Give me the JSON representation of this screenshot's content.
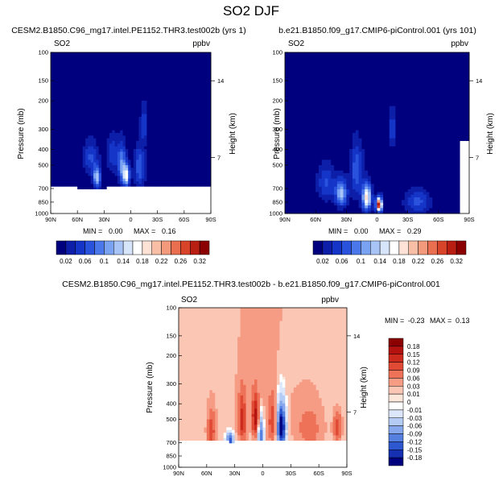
{
  "figure": {
    "title": "SO2 DJF"
  },
  "chart_data": [
    {
      "type": "heatmap",
      "id": "left",
      "title": "CESM2.B1850.C96_mg17.intel.PE1152.THR3.test002b (yrs 1)",
      "left_label": "SO2",
      "right_label": "ppbv",
      "xlabel": "",
      "ylabel": "Pressure (mb)",
      "y2label": "Height (km)",
      "x_ticks": [
        "90N",
        "60N",
        "30N",
        "0",
        "30S",
        "60S",
        "90S"
      ],
      "y_ticks": [
        "100",
        "150",
        "200",
        "300",
        "400",
        "500",
        "700",
        "850",
        "1000"
      ],
      "y2_ticks": [
        "14",
        "7"
      ],
      "stats": {
        "min_label": "MIN =",
        "min": "0.00",
        "max_label": "MAX =",
        "max": "0.16"
      },
      "colorbar_labels": [
        "0.02",
        "0.06",
        "0.1",
        "0.14",
        "0.18",
        "0.22",
        "0.26",
        "0.32"
      ],
      "colors": {
        "bar": [
          "#00007f",
          "#0d1fa8",
          "#1535c8",
          "#2a53dd",
          "#4a78ea",
          "#7aa2f2",
          "#a8c4f7",
          "#d7e5fb",
          "#ffffff",
          "#fde2d5",
          "#f8bfa6",
          "#f39a7c",
          "#ea6f50",
          "#d8442a",
          "#b81e12",
          "#8b0000"
        ]
      },
      "hotspots": [
        {
          "lat": 45,
          "p": 450,
          "amp": 0.06,
          "slat": 6,
          "sp": 80
        },
        {
          "lat": 38,
          "p": 600,
          "amp": 0.13,
          "slat": 3,
          "sp": 60
        },
        {
          "lat": 20,
          "p": 420,
          "amp": 0.05,
          "slat": 5,
          "sp": 80
        },
        {
          "lat": 10,
          "p": 500,
          "amp": 0.09,
          "slat": 3,
          "sp": 100
        },
        {
          "lat": 5,
          "p": 580,
          "amp": 0.16,
          "slat": 2.5,
          "sp": 60
        },
        {
          "lat": -15,
          "p": 280,
          "amp": 0.05,
          "slat": 3,
          "sp": 60
        },
        {
          "lat": -10,
          "p": 520,
          "amp": 0.07,
          "slat": 4,
          "sp": 100
        }
      ]
    },
    {
      "type": "heatmap",
      "id": "right",
      "title": "b.e21.B1850.f09_g17.CMIP6-piControl.001 (yrs 101)",
      "left_label": "SO2",
      "right_label": "ppbv",
      "xlabel": "",
      "ylabel": "Pressure (mb)",
      "y2label": "Height (km)",
      "x_ticks": [
        "90N",
        "60N",
        "30N",
        "0",
        "30S",
        "60S",
        "90S"
      ],
      "y_ticks": [
        "100",
        "150",
        "200",
        "300",
        "400",
        "500",
        "700",
        "850",
        "1000"
      ],
      "y2_ticks": [
        "14",
        "7"
      ],
      "stats": {
        "min_label": "MIN =",
        "min": "0.00",
        "max_label": "MAX =",
        "max": "0.29"
      },
      "colorbar_labels": [
        "0.02",
        "0.06",
        "0.1",
        "0.14",
        "0.18",
        "0.22",
        "0.26",
        "0.32"
      ],
      "hotspots": [
        {
          "lat": 50,
          "p": 650,
          "amp": 0.06,
          "slat": 6,
          "sp": 120
        },
        {
          "lat": 35,
          "p": 750,
          "amp": 0.12,
          "slat": 4,
          "sp": 100
        },
        {
          "lat": 20,
          "p": 550,
          "amp": 0.07,
          "slat": 4,
          "sp": 150
        },
        {
          "lat": 10,
          "p": 800,
          "amp": 0.18,
          "slat": 3,
          "sp": 100
        },
        {
          "lat": -2,
          "p": 880,
          "amp": 0.29,
          "slat": 2,
          "sp": 60
        },
        {
          "lat": -15,
          "p": 300,
          "amp": 0.05,
          "slat": 3,
          "sp": 60
        },
        {
          "lat": -40,
          "p": 850,
          "amp": 0.06,
          "slat": 8,
          "sp": 100
        }
      ]
    },
    {
      "type": "heatmap",
      "id": "diff",
      "title": "CESM2.B1850.C96_mg17.intel.PE1152.THR3.test002b - b.e21.B1850.f09_g17.CMIP6-piControl.001",
      "left_label": "SO2",
      "right_label": "ppbv",
      "xlabel": "",
      "ylabel": "Pressure (mb)",
      "y2label": "Height (km)",
      "x_ticks": [
        "90N",
        "60N",
        "30N",
        "0",
        "30S",
        "60S",
        "90S"
      ],
      "y_ticks": [
        "100",
        "150",
        "200",
        "300",
        "400",
        "500",
        "700",
        "850",
        "1000"
      ],
      "y2_ticks": [
        "14",
        "7"
      ],
      "stats": {
        "min_label": "MIN =",
        "min": "-0.23",
        "max_label": "MAX =",
        "max": "0.13"
      },
      "colorbar_labels": [
        "0.18",
        "0.15",
        "0.12",
        "0.09",
        "0.06",
        "0.03",
        "0.01",
        "0",
        "-0.01",
        "-0.03",
        "-0.06",
        "-0.09",
        "-0.12",
        "-0.15",
        "-0.18"
      ],
      "colors": {
        "bar": [
          "#8b0000",
          "#b3120f",
          "#cc2a1d",
          "#e04a34",
          "#ee7258",
          "#f69c84",
          "#fbc7b4",
          "#fde6da",
          "#ffffff",
          "#dce7fb",
          "#b4cbf4",
          "#86a7ec",
          "#5680e0",
          "#2e58d0",
          "#1530b3",
          "#00007f"
        ]
      },
      "hotspots": [
        {
          "lat": 55,
          "p": 600,
          "amp": 0.08,
          "slat": 3,
          "sp": 120
        },
        {
          "lat": 35,
          "p": 680,
          "amp": -0.15,
          "slat": 2.5,
          "sp": 50
        },
        {
          "lat": 22,
          "p": 500,
          "amp": 0.1,
          "slat": 3,
          "sp": 120
        },
        {
          "lat": 8,
          "p": 480,
          "amp": 0.13,
          "slat": 2.5,
          "sp": 100
        },
        {
          "lat": 2,
          "p": 620,
          "amp": -0.12,
          "slat": 2,
          "sp": 100
        },
        {
          "lat": -10,
          "p": 520,
          "amp": 0.07,
          "slat": 3,
          "sp": 120
        },
        {
          "lat": -20,
          "p": 560,
          "amp": -0.23,
          "slat": 3,
          "sp": 120
        },
        {
          "lat": -50,
          "p": 580,
          "amp": 0.04,
          "slat": 10,
          "sp": 150
        },
        {
          "lat": -80,
          "p": 560,
          "amp": 0.08,
          "slat": 3,
          "sp": 80
        }
      ]
    }
  ]
}
